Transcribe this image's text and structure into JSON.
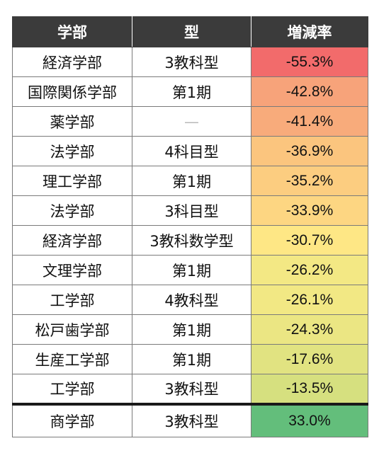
{
  "headers": {
    "faculty": "学部",
    "type": "型",
    "rate": "増減率"
  },
  "rows": [
    {
      "faculty": "経済学部",
      "type": "3教科型",
      "rate": "-55.3%",
      "color": "#f26b6b"
    },
    {
      "faculty": "国際関係学部",
      "type": "第1期",
      "rate": "-42.8%",
      "color": "#f7a37a"
    },
    {
      "faculty": "薬学部",
      "type": "—",
      "rate": "-41.4%",
      "color": "#f8ab7b"
    },
    {
      "faculty": "法学部",
      "type": "4科目型",
      "rate": "-36.9%",
      "color": "#fbc57e"
    },
    {
      "faculty": "理工学部",
      "type": "第1期",
      "rate": "-35.2%",
      "color": "#fccd80"
    },
    {
      "faculty": "法学部",
      "type": "3科目型",
      "rate": "-33.9%",
      "color": "#fdd682"
    },
    {
      "faculty": "経済学部",
      "type": "3教科数学型",
      "rate": "-30.7%",
      "color": "#fee785"
    },
    {
      "faculty": "文理学部",
      "type": "第1期",
      "rate": "-26.2%",
      "color": "#f3e884"
    },
    {
      "faculty": "工学部",
      "type": "4教科型",
      "rate": "-26.1%",
      "color": "#f2e884"
    },
    {
      "faculty": "松戸歯学部",
      "type": "第1期",
      "rate": "-24.3%",
      "color": "#ebe683"
    },
    {
      "faculty": "生産工学部",
      "type": "第1期",
      "rate": "-17.6%",
      "color": "#e1e381"
    },
    {
      "faculty": "工学部",
      "type": "3教科型",
      "rate": "-13.5%",
      "color": "#d6e07f"
    },
    {
      "faculty": "商学部",
      "type": "3教科型",
      "rate": "33.0%",
      "color": "#63be7b"
    }
  ]
}
